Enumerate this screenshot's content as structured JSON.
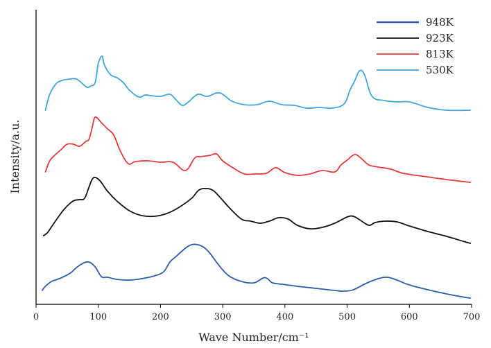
{
  "chart_data": {
    "type": "line",
    "title": "",
    "xlabel": "Wave Number/cm⁻¹",
    "ylabel": "Intensity/a.u.",
    "xlim": [
      0,
      700
    ],
    "x_ticks": [
      0,
      100,
      200,
      300,
      400,
      500,
      600,
      700
    ],
    "y_ticks_shown": false,
    "grid": false,
    "legend_position": "top-right",
    "series": [
      {
        "name": "948K",
        "color": "#2b5caa",
        "offset": 0,
        "x": [
          10,
          15,
          25,
          40,
          55,
          65,
          75,
          85,
          95,
          105,
          115,
          130,
          150,
          170,
          190,
          205,
          215,
          225,
          240,
          250,
          260,
          270,
          280,
          295,
          310,
          330,
          350,
          365,
          372,
          380,
          395,
          420,
          450,
          480,
          495,
          510,
          530,
          550,
          565,
          580,
          600,
          630,
          660,
          690,
          698
        ],
        "y": [
          3,
          9,
          16,
          21,
          28,
          36,
          42,
          44,
          37,
          23,
          22,
          19,
          18,
          20,
          24,
          30,
          44,
          52,
          64,
          69,
          69,
          65,
          56,
          38,
          24,
          16,
          14,
          21,
          20,
          14,
          12,
          9,
          6,
          3,
          2,
          4,
          13,
          20,
          22,
          18,
          11,
          4,
          -2,
          -7,
          -8
        ]
      },
      {
        "name": "923K",
        "color": "#111111",
        "offset": 78,
        "x": [
          12,
          18,
          25,
          35,
          45,
          55,
          62,
          70,
          78,
          85,
          90,
          95,
          103,
          115,
          130,
          150,
          170,
          190,
          210,
          230,
          250,
          262,
          275,
          285,
          295,
          310,
          330,
          345,
          360,
          375,
          390,
          405,
          420,
          440,
          460,
          480,
          500,
          510,
          520,
          535,
          545,
          560,
          580,
          600,
          630,
          660,
          690,
          698
        ],
        "y": [
          4,
          8,
          17,
          30,
          42,
          51,
          55,
          56,
          58,
          74,
          85,
          88,
          83,
          68,
          54,
          40,
          33,
          32,
          36,
          45,
          58,
          70,
          72,
          69,
          60,
          45,
          28,
          25,
          22,
          25,
          30,
          28,
          19,
          14,
          16,
          22,
          31,
          32,
          27,
          19,
          23,
          25,
          24,
          18,
          10,
          3,
          -5,
          -7
        ]
      },
      {
        "name": "813K",
        "color": "#e03a3a",
        "offset": 174,
        "x": [
          15,
          22,
          30,
          40,
          50,
          60,
          70,
          80,
          85,
          90,
          95,
          105,
          115,
          125,
          135,
          148,
          160,
          180,
          200,
          220,
          240,
          255,
          265,
          280,
          290,
          300,
          320,
          335,
          350,
          370,
          385,
          400,
          420,
          440,
          460,
          480,
          490,
          500,
          512,
          522,
          535,
          550,
          570,
          590,
          620,
          660,
          698
        ],
        "y": [
          0,
          16,
          24,
          32,
          40,
          40,
          37,
          44,
          47,
          63,
          79,
          71,
          62,
          53,
          31,
          12,
          15,
          16,
          14,
          14,
          2,
          20,
          22,
          24,
          26,
          16,
          4,
          -3,
          -3,
          -2,
          6,
          -1,
          -5,
          -3,
          2,
          0,
          10,
          17,
          25,
          20,
          10,
          7,
          4,
          -2,
          -6,
          -11,
          -15
        ]
      },
      {
        "name": "530K",
        "color": "#3fa6d8",
        "offset": 258,
        "x": [
          15,
          22,
          32,
          42,
          55,
          65,
          75,
          82,
          88,
          95,
          100,
          106,
          110,
          120,
          130,
          140,
          150,
          165,
          175,
          185,
          200,
          215,
          225,
          235,
          245,
          260,
          275,
          295,
          315,
          335,
          355,
          375,
          395,
          415,
          435,
          455,
          475,
          495,
          505,
          512,
          520,
          528,
          540,
          560,
          580,
          600,
          630,
          660,
          698
        ],
        "y": [
          5,
          28,
          43,
          48,
          50,
          50,
          43,
          38,
          40,
          45,
          72,
          83,
          70,
          56,
          52,
          45,
          34,
          24,
          27,
          26,
          25,
          28,
          20,
          12,
          17,
          28,
          25,
          30,
          18,
          13,
          13,
          18,
          13,
          12,
          8,
          9,
          8,
          14,
          35,
          47,
          62,
          56,
          25,
          19,
          17,
          17,
          9,
          5,
          5
        ]
      }
    ]
  }
}
